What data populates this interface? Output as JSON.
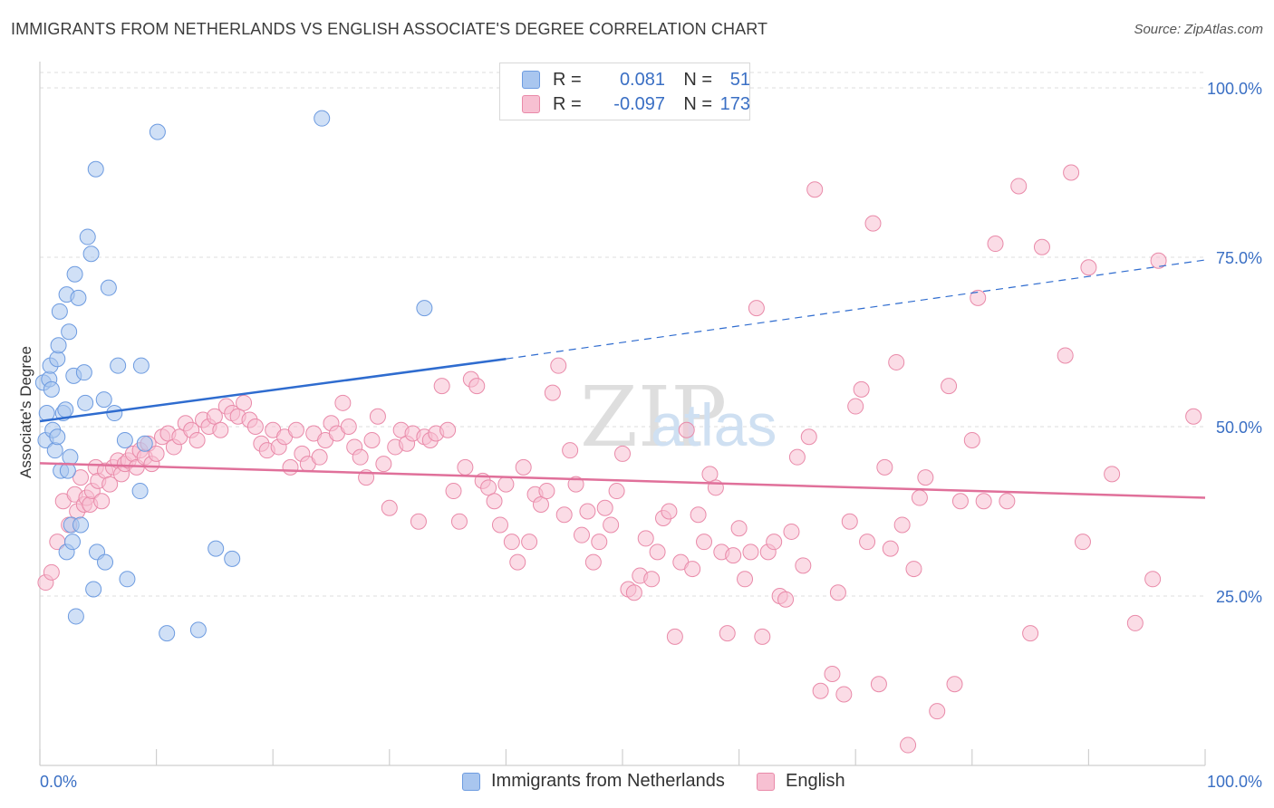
{
  "header": {
    "title": "IMMIGRANTS FROM NETHERLANDS VS ENGLISH ASSOCIATE'S DEGREE CORRELATION CHART",
    "source": "Source: ZipAtlas.com"
  },
  "watermark": {
    "zip": "ZIP",
    "atlas": "atlas"
  },
  "stats_legend": {
    "rows": [
      {
        "r_label": "R =",
        "r_value": "0.081",
        "n_label": "N =",
        "n_value": "51",
        "color": "#a9c6ef",
        "border": "#6d9be0"
      },
      {
        "r_label": "R =",
        "r_value": "-0.097",
        "n_label": "N =",
        "n_value": "173",
        "color": "#f7c0d2",
        "border": "#e98aa9"
      }
    ]
  },
  "chart_data": {
    "type": "scatter",
    "title": "IMMIGRANTS FROM NETHERLANDS VS ENGLISH ASSOCIATE'S DEGREE CORRELATION CHART",
    "xlabel": "",
    "ylabel": "Associate's Degree",
    "xlim": [
      0,
      100
    ],
    "ylim": [
      0,
      100
    ],
    "x_tick_labels": [
      "0.0%",
      "100.0%"
    ],
    "y_ticks": [
      25,
      50,
      75,
      100
    ],
    "y_tick_labels": [
      "25.0%",
      "50.0%",
      "75.0%",
      "100.0%"
    ],
    "grid": true,
    "legend_placement": "bottom-center",
    "series": [
      {
        "name": "Immigrants from Netherlands",
        "color": "#a9c6ef",
        "stroke": "#6d9be0",
        "line_color": "#2f6ccf",
        "trend": {
          "x0": 0,
          "y0": 50.8,
          "x1": 40,
          "y1": 60.0,
          "dash_to_x": 100,
          "dash_to_y": 74.6
        },
        "points": [
          [
            0.3,
            56.5
          ],
          [
            0.5,
            48.0
          ],
          [
            0.6,
            52.0
          ],
          [
            0.8,
            57.0
          ],
          [
            0.9,
            59.0
          ],
          [
            1.0,
            55.5
          ],
          [
            1.1,
            49.5
          ],
          [
            1.3,
            46.5
          ],
          [
            1.5,
            60.0
          ],
          [
            1.5,
            48.5
          ],
          [
            1.6,
            62.0
          ],
          [
            1.7,
            67.0
          ],
          [
            1.8,
            43.5
          ],
          [
            2.0,
            52.0
          ],
          [
            2.2,
            52.5
          ],
          [
            2.3,
            31.5
          ],
          [
            2.3,
            69.5
          ],
          [
            2.4,
            43.5
          ],
          [
            2.5,
            64.0
          ],
          [
            2.6,
            45.5
          ],
          [
            2.7,
            35.5
          ],
          [
            2.8,
            33.0
          ],
          [
            2.9,
            57.5
          ],
          [
            3.0,
            72.5
          ],
          [
            3.1,
            22.0
          ],
          [
            3.3,
            69.0
          ],
          [
            3.5,
            35.5
          ],
          [
            3.8,
            58.0
          ],
          [
            3.9,
            53.5
          ],
          [
            4.1,
            78.0
          ],
          [
            4.4,
            75.5
          ],
          [
            4.6,
            26.0
          ],
          [
            4.8,
            88.0
          ],
          [
            4.9,
            31.5
          ],
          [
            5.5,
            54.0
          ],
          [
            5.6,
            30.0
          ],
          [
            5.9,
            70.5
          ],
          [
            6.4,
            52.0
          ],
          [
            6.7,
            59.0
          ],
          [
            7.3,
            48.0
          ],
          [
            7.5,
            27.5
          ],
          [
            8.6,
            40.5
          ],
          [
            8.7,
            59.0
          ],
          [
            9.0,
            47.5
          ],
          [
            10.1,
            93.5
          ],
          [
            10.9,
            19.5
          ],
          [
            13.6,
            20.0
          ],
          [
            15.1,
            32.0
          ],
          [
            16.5,
            30.5
          ],
          [
            24.2,
            95.5
          ],
          [
            33.0,
            67.5
          ]
        ]
      },
      {
        "name": "English",
        "color": "#f7c0d2",
        "stroke": "#e98aa9",
        "line_color": "#e0709a",
        "trend": {
          "x0": 0,
          "y0": 44.6,
          "x1": 100,
          "y1": 39.5
        },
        "points": [
          [
            0.5,
            27.0
          ],
          [
            1.0,
            28.5
          ],
          [
            1.5,
            33.0
          ],
          [
            2.0,
            39.0
          ],
          [
            2.5,
            35.5
          ],
          [
            3.0,
            40.0
          ],
          [
            3.2,
            37.5
          ],
          [
            3.5,
            42.5
          ],
          [
            3.8,
            38.5
          ],
          [
            4.0,
            39.5
          ],
          [
            4.3,
            38.5
          ],
          [
            4.5,
            40.5
          ],
          [
            4.8,
            44.0
          ],
          [
            5.0,
            42.0
          ],
          [
            5.3,
            39.0
          ],
          [
            5.6,
            43.5
          ],
          [
            6.0,
            41.5
          ],
          [
            6.3,
            44.0
          ],
          [
            6.7,
            45.0
          ],
          [
            7.0,
            43.0
          ],
          [
            7.3,
            44.5
          ],
          [
            7.6,
            45.0
          ],
          [
            8.0,
            46.0
          ],
          [
            8.3,
            44.0
          ],
          [
            8.6,
            46.5
          ],
          [
            9.0,
            45.5
          ],
          [
            9.3,
            47.5
          ],
          [
            9.6,
            44.5
          ],
          [
            10.0,
            46.0
          ],
          [
            10.5,
            48.5
          ],
          [
            11.0,
            49.0
          ],
          [
            11.5,
            47.0
          ],
          [
            12.0,
            48.5
          ],
          [
            12.5,
            50.5
          ],
          [
            13.0,
            49.5
          ],
          [
            13.5,
            48.0
          ],
          [
            14.0,
            51.0
          ],
          [
            14.5,
            50.0
          ],
          [
            15.0,
            51.5
          ],
          [
            15.5,
            49.5
          ],
          [
            16.0,
            53.0
          ],
          [
            16.5,
            52.0
          ],
          [
            17.0,
            51.5
          ],
          [
            17.5,
            53.5
          ],
          [
            18.0,
            51.0
          ],
          [
            18.5,
            50.0
          ],
          [
            19.0,
            47.5
          ],
          [
            19.5,
            46.5
          ],
          [
            20.0,
            49.5
          ],
          [
            20.5,
            47.0
          ],
          [
            21.0,
            48.5
          ],
          [
            21.5,
            44.0
          ],
          [
            22.0,
            49.5
          ],
          [
            22.5,
            46.0
          ],
          [
            23.0,
            44.5
          ],
          [
            23.5,
            49.0
          ],
          [
            24.0,
            45.5
          ],
          [
            24.5,
            48.0
          ],
          [
            25.0,
            50.5
          ],
          [
            25.5,
            49.0
          ],
          [
            26.0,
            53.5
          ],
          [
            26.5,
            50.0
          ],
          [
            27.0,
            47.0
          ],
          [
            27.5,
            45.5
          ],
          [
            28.0,
            42.5
          ],
          [
            28.5,
            48.0
          ],
          [
            29.0,
            51.5
          ],
          [
            29.5,
            44.5
          ],
          [
            30.0,
            38.0
          ],
          [
            30.5,
            47.0
          ],
          [
            31.0,
            49.5
          ],
          [
            31.5,
            47.5
          ],
          [
            32.0,
            49.0
          ],
          [
            32.5,
            36.0
          ],
          [
            33.0,
            48.5
          ],
          [
            33.5,
            48.0
          ],
          [
            34.0,
            49.0
          ],
          [
            34.5,
            56.0
          ],
          [
            35.0,
            49.5
          ],
          [
            35.5,
            40.5
          ],
          [
            36.0,
            36.0
          ],
          [
            36.5,
            44.0
          ],
          [
            37.0,
            57.0
          ],
          [
            37.5,
            56.0
          ],
          [
            38.0,
            42.0
          ],
          [
            38.5,
            41.0
          ],
          [
            39.0,
            39.0
          ],
          [
            39.5,
            35.5
          ],
          [
            40.0,
            41.5
          ],
          [
            40.5,
            33.0
          ],
          [
            41.0,
            30.0
          ],
          [
            41.5,
            44.0
          ],
          [
            42.0,
            33.0
          ],
          [
            42.5,
            40.0
          ],
          [
            43.0,
            38.5
          ],
          [
            43.5,
            40.5
          ],
          [
            44.0,
            55.0
          ],
          [
            44.5,
            59.0
          ],
          [
            45.0,
            37.0
          ],
          [
            45.5,
            46.5
          ],
          [
            46.0,
            41.5
          ],
          [
            46.5,
            34.0
          ],
          [
            47.0,
            37.5
          ],
          [
            47.5,
            30.0
          ],
          [
            48.0,
            33.0
          ],
          [
            48.5,
            38.0
          ],
          [
            49.0,
            35.5
          ],
          [
            49.5,
            40.5
          ],
          [
            50.0,
            46.0
          ],
          [
            50.5,
            26.0
          ],
          [
            51.0,
            25.5
          ],
          [
            51.5,
            28.0
          ],
          [
            52.0,
            33.5
          ],
          [
            52.5,
            27.5
          ],
          [
            53.0,
            31.5
          ],
          [
            53.5,
            36.5
          ],
          [
            54.0,
            37.5
          ],
          [
            54.5,
            19.0
          ],
          [
            55.0,
            30.0
          ],
          [
            55.5,
            49.5
          ],
          [
            56.0,
            29.0
          ],
          [
            56.5,
            37.0
          ],
          [
            57.0,
            33.0
          ],
          [
            57.5,
            43.0
          ],
          [
            58.0,
            41.0
          ],
          [
            58.5,
            31.5
          ],
          [
            59.0,
            19.5
          ],
          [
            59.5,
            31.0
          ],
          [
            60.0,
            35.0
          ],
          [
            60.5,
            27.5
          ],
          [
            61.0,
            31.5
          ],
          [
            61.5,
            67.5
          ],
          [
            62.0,
            19.0
          ],
          [
            62.5,
            31.5
          ],
          [
            63.0,
            33.0
          ],
          [
            63.5,
            25.0
          ],
          [
            64.0,
            24.5
          ],
          [
            64.5,
            34.5
          ],
          [
            65.0,
            45.5
          ],
          [
            65.5,
            29.5
          ],
          [
            66.0,
            48.5
          ],
          [
            66.5,
            85.0
          ],
          [
            67.0,
            11.0
          ],
          [
            68.0,
            13.5
          ],
          [
            68.5,
            25.5
          ],
          [
            69.0,
            10.5
          ],
          [
            69.5,
            36.0
          ],
          [
            70.0,
            53.0
          ],
          [
            70.5,
            55.5
          ],
          [
            71.0,
            33.0
          ],
          [
            71.5,
            80.0
          ],
          [
            72.0,
            12.0
          ],
          [
            72.5,
            44.0
          ],
          [
            73.0,
            32.0
          ],
          [
            73.5,
            59.5
          ],
          [
            74.0,
            35.5
          ],
          [
            74.5,
            3.0
          ],
          [
            75.0,
            29.0
          ],
          [
            75.5,
            39.5
          ],
          [
            76.0,
            42.5
          ],
          [
            77.0,
            8.0
          ],
          [
            78.0,
            56.0
          ],
          [
            78.5,
            12.0
          ],
          [
            79.0,
            39.0
          ],
          [
            80.0,
            48.0
          ],
          [
            80.5,
            69.0
          ],
          [
            81.0,
            39.0
          ],
          [
            82.0,
            77.0
          ],
          [
            83.0,
            39.0
          ],
          [
            84.0,
            85.5
          ],
          [
            85.0,
            19.5
          ],
          [
            86.0,
            76.5
          ],
          [
            88.0,
            60.5
          ],
          [
            88.5,
            87.5
          ],
          [
            89.5,
            33.0
          ],
          [
            90.0,
            73.5
          ],
          [
            92.0,
            43.0
          ],
          [
            94.0,
            21.0
          ],
          [
            95.5,
            27.5
          ],
          [
            96.0,
            74.5
          ],
          [
            99.0,
            51.5
          ]
        ]
      }
    ]
  },
  "bottom_legend": {
    "items": [
      {
        "label": "Immigrants from Netherlands",
        "color": "#a9c6ef",
        "border": "#6d9be0"
      },
      {
        "label": "English",
        "color": "#f7c0d2",
        "border": "#e98aa9"
      }
    ]
  }
}
